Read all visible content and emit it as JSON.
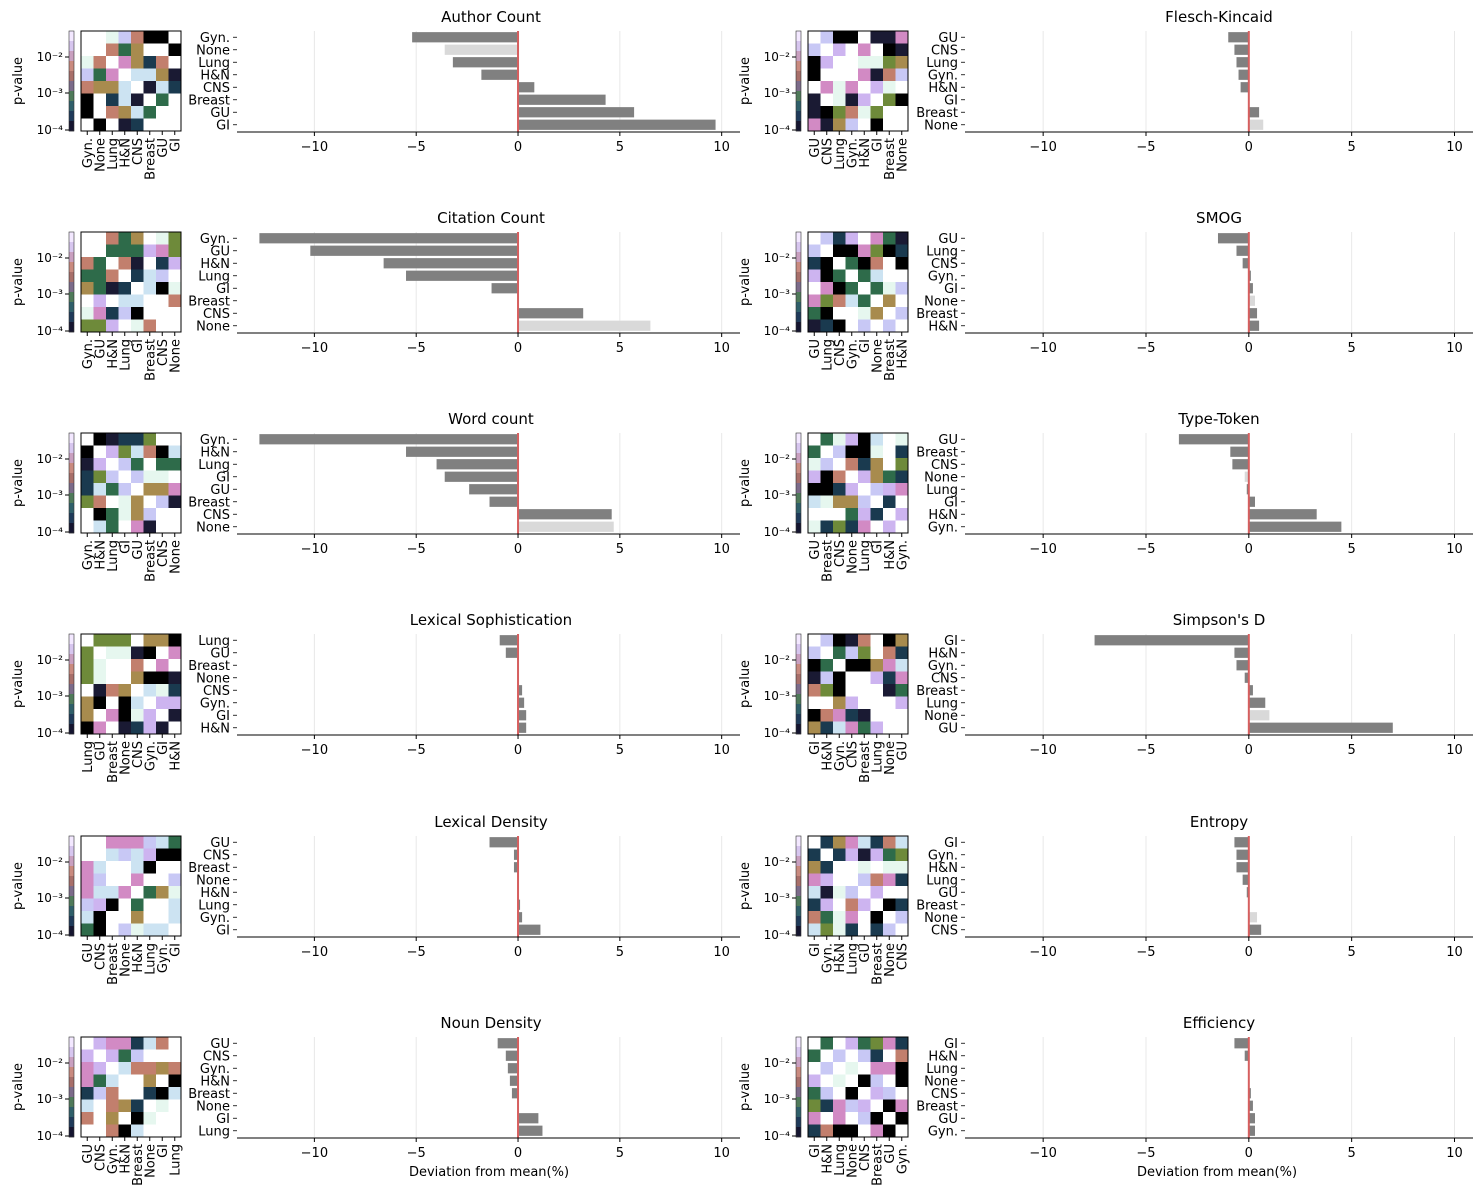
{
  "chart_data": {
    "type": "bar",
    "xlabel": "Deviation from mean(%)",
    "xlim": [
      -13.8,
      10.9
    ],
    "xticks": [
      -10,
      -5,
      0,
      5,
      10
    ],
    "xtick_labels": [
      "−10",
      "−5",
      "0",
      "5",
      "10"
    ],
    "heatmap_ylabel": "p-value",
    "heatmap_scale": "log",
    "heatmap_yticks": [
      "10⁻²",
      "10⁻³",
      "10⁻⁴"
    ],
    "colors": {
      "bar": "#808080",
      "bar_none": "#d9d9d9",
      "zero_line": "#d65f5f"
    },
    "panels": [
      {
        "title": "Author Count",
        "categories": [
          "Gyn.",
          "None",
          "Lung",
          "H&N",
          "CNS",
          "Breast",
          "GU",
          "GI"
        ],
        "values": [
          -5.2,
          -3.6,
          -3.2,
          -1.8,
          0.8,
          4.3,
          5.7,
          9.7
        ]
      },
      {
        "title": "Flesch-Kincaid",
        "categories": [
          "GU",
          "CNS",
          "Lung",
          "Gyn.",
          "H&N",
          "GI",
          "Breast",
          "None"
        ],
        "values": [
          -1.0,
          -0.7,
          -0.6,
          -0.5,
          -0.4,
          0.0,
          0.5,
          0.7
        ]
      },
      {
        "title": "Citation Count",
        "categories": [
          "Gyn.",
          "GU",
          "H&N",
          "Lung",
          "GI",
          "Breast",
          "CNS",
          "None"
        ],
        "values": [
          -12.7,
          -10.2,
          -6.6,
          -5.5,
          -1.3,
          0.0,
          3.2,
          6.5
        ]
      },
      {
        "title": "SMOG",
        "categories": [
          "GU",
          "Lung",
          "CNS",
          "Gyn.",
          "GI",
          "None",
          "Breast",
          "H&N"
        ],
        "values": [
          -1.5,
          -0.6,
          -0.3,
          0.1,
          0.2,
          0.3,
          0.4,
          0.5
        ]
      },
      {
        "title": "Word count",
        "categories": [
          "Gyn.",
          "H&N",
          "Lung",
          "GI",
          "GU",
          "Breast",
          "CNS",
          "None"
        ],
        "values": [
          -12.7,
          -5.5,
          -4.0,
          -3.6,
          -2.4,
          -1.4,
          4.6,
          4.7
        ]
      },
      {
        "title": "Type-Token",
        "categories": [
          "GU",
          "Breast",
          "CNS",
          "None",
          "Lung",
          "GI",
          "H&N",
          "Gyn."
        ],
        "values": [
          -3.4,
          -0.9,
          -0.8,
          -0.2,
          -0.1,
          0.3,
          3.3,
          4.5
        ]
      },
      {
        "title": "Lexical Sophistication",
        "categories": [
          "Lung",
          "GU",
          "Breast",
          "None",
          "CNS",
          "Gyn.",
          "GI",
          "H&N"
        ],
        "values": [
          -0.9,
          -0.6,
          0.0,
          0.0,
          0.2,
          0.3,
          0.4,
          0.4
        ]
      },
      {
        "title": "Simpson's D",
        "categories": [
          "GI",
          "H&N",
          "Gyn.",
          "CNS",
          "Breast",
          "Lung",
          "None",
          "GU"
        ],
        "values": [
          -7.5,
          -0.7,
          -0.6,
          -0.2,
          0.2,
          0.8,
          1.0,
          7.0
        ]
      },
      {
        "title": "Lexical Density",
        "categories": [
          "GU",
          "CNS",
          "Breast",
          "None",
          "H&N",
          "Lung",
          "Gyn.",
          "GI"
        ],
        "values": [
          -1.4,
          -0.2,
          -0.2,
          0.0,
          0.0,
          0.1,
          0.2,
          1.1
        ]
      },
      {
        "title": "Entropy",
        "categories": [
          "GI",
          "Gyn.",
          "H&N",
          "Lung",
          "GU",
          "Breast",
          "None",
          "CNS"
        ],
        "values": [
          -0.7,
          -0.6,
          -0.6,
          -0.3,
          -0.1,
          0.0,
          0.4,
          0.6
        ]
      },
      {
        "title": "Noun Density",
        "categories": [
          "GU",
          "CNS",
          "Gyn.",
          "H&N",
          "Breast",
          "None",
          "GI",
          "Lung"
        ],
        "values": [
          -1.0,
          -0.6,
          -0.5,
          -0.4,
          -0.3,
          0.0,
          1.0,
          1.2
        ]
      },
      {
        "title": "Efficiency",
        "categories": [
          "GI",
          "H&N",
          "Lung",
          "None",
          "CNS",
          "Breast",
          "GU",
          "Gyn."
        ],
        "values": [
          -0.7,
          -0.2,
          0.0,
          0.0,
          0.1,
          0.2,
          0.3,
          0.3
        ]
      }
    ]
  }
}
